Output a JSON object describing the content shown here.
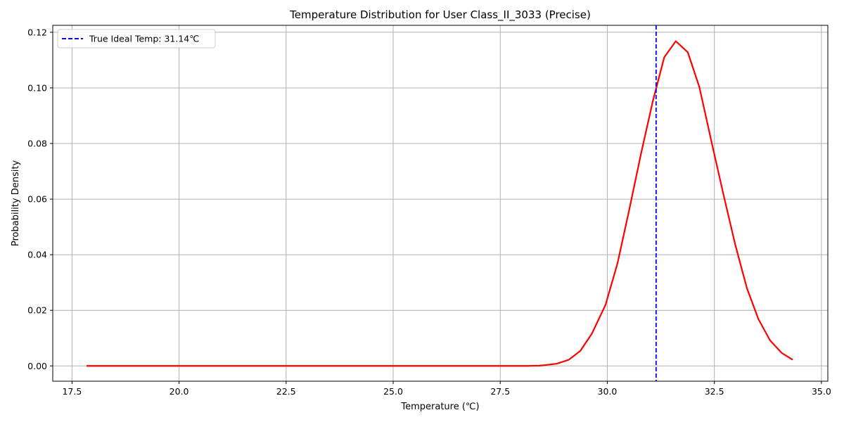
{
  "chart_data": {
    "type": "line",
    "title": "Temperature Distribution for User Class_II_3033 (Precise)",
    "xlabel": "Temperature (℃)",
    "ylabel": "Probability Density",
    "xlim": [
      17.05,
      35.15
    ],
    "ylim": [
      -0.0055,
      0.1225
    ],
    "xticks": [
      17.5,
      20.0,
      22.5,
      25.0,
      27.5,
      30.0,
      32.5,
      35.0
    ],
    "xtick_labels": [
      "17.5",
      "20.0",
      "22.5",
      "25.0",
      "27.5",
      "30.0",
      "32.5",
      "35.0"
    ],
    "yticks": [
      0.0,
      0.02,
      0.04,
      0.06,
      0.08,
      0.1,
      0.12
    ],
    "ytick_labels": [
      "0.00",
      "0.02",
      "0.04",
      "0.06",
      "0.08",
      "0.10",
      "0.12"
    ],
    "grid": true,
    "legend_position": "top-left",
    "series": [
      {
        "name": "",
        "color": "#ff0000",
        "style": "solid",
        "x": [
          17.84,
          18.12,
          18.39,
          18.67,
          18.95,
          19.23,
          19.51,
          19.79,
          20.06,
          20.34,
          20.62,
          20.9,
          21.18,
          21.46,
          21.73,
          22.01,
          22.29,
          22.57,
          22.85,
          23.13,
          23.4,
          23.68,
          23.96,
          24.24,
          24.52,
          24.8,
          25.07,
          25.35,
          25.63,
          25.91,
          26.19,
          26.47,
          26.74,
          27.02,
          27.3,
          27.58,
          27.86,
          28.14,
          28.41,
          28.55,
          28.82,
          29.1,
          29.37,
          29.64,
          29.96,
          30.24,
          30.51,
          30.79,
          31.06,
          31.33,
          31.6,
          31.88,
          32.15,
          32.45,
          32.73,
          32.99,
          33.26,
          33.53,
          33.8,
          34.07,
          34.33
        ],
        "y": [
          0.0,
          0.0,
          0.0,
          0.0,
          0.0,
          0.0,
          0.0,
          0.0,
          0.0,
          0.0,
          0.0,
          0.0,
          0.0,
          0.0,
          0.0,
          0.0,
          0.0,
          0.0,
          0.0,
          0.0,
          0.0,
          0.0,
          0.0,
          0.0,
          0.0,
          0.0,
          0.0,
          0.0,
          0.0,
          0.0,
          0.0,
          0.0,
          0.0,
          0.0,
          0.0,
          0.0,
          0.0,
          0.0,
          0.0001,
          0.0003,
          0.0008,
          0.0022,
          0.0054,
          0.0116,
          0.022,
          0.037,
          0.056,
          0.0765,
          0.095,
          0.111,
          0.1168,
          0.1128,
          0.1003,
          0.0795,
          0.0605,
          0.0435,
          0.028,
          0.0168,
          0.0092,
          0.0047,
          0.0022
        ]
      }
    ],
    "vline": {
      "label": "True Ideal Temp: 31.14℃",
      "x": 31.14,
      "color": "#0000ff",
      "style": "dashed"
    }
  }
}
